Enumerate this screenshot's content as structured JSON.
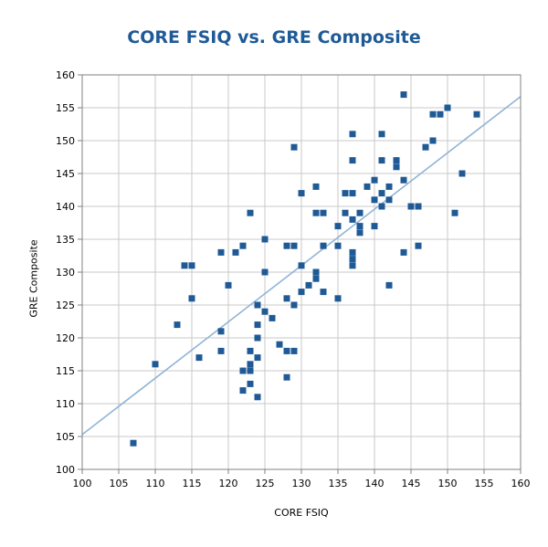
{
  "chart_data": {
    "type": "scatter",
    "title": "CORE FSIQ vs. GRE Composite",
    "xlabel": "CORE FSIQ",
    "ylabel": "GRE Composite",
    "xlim": [
      100,
      160
    ],
    "ylim": [
      100,
      160
    ],
    "x_ticks": [
      100,
      105,
      110,
      115,
      120,
      125,
      130,
      135,
      140,
      145,
      150,
      155,
      160
    ],
    "y_ticks": [
      100,
      105,
      110,
      115,
      120,
      125,
      130,
      135,
      140,
      145,
      150,
      155,
      160
    ],
    "grid": true,
    "legend": "none",
    "trendline": {
      "type": "linear",
      "points": [
        [
          100,
          105.3
        ],
        [
          160,
          156.7
        ]
      ]
    },
    "series": [
      {
        "points": [
          [
            107,
            104
          ],
          [
            110,
            116
          ],
          [
            113,
            122
          ],
          [
            114,
            131
          ],
          [
            115,
            131
          ],
          [
            115,
            126
          ],
          [
            116,
            117
          ],
          [
            119,
            133
          ],
          [
            119,
            121
          ],
          [
            119,
            118
          ],
          [
            120,
            128
          ],
          [
            121,
            133
          ],
          [
            122,
            134
          ],
          [
            122,
            115
          ],
          [
            122,
            112
          ],
          [
            123,
            139
          ],
          [
            123,
            118
          ],
          [
            123,
            116
          ],
          [
            123,
            115
          ],
          [
            123,
            113
          ],
          [
            124,
            125
          ],
          [
            124,
            122
          ],
          [
            124,
            120
          ],
          [
            124,
            117
          ],
          [
            124,
            111
          ],
          [
            125,
            135
          ],
          [
            125,
            130
          ],
          [
            125,
            124
          ],
          [
            126,
            123
          ],
          [
            127,
            119
          ],
          [
            128,
            134
          ],
          [
            128,
            126
          ],
          [
            128,
            118
          ],
          [
            128,
            114
          ],
          [
            129,
            149
          ],
          [
            129,
            134
          ],
          [
            129,
            125
          ],
          [
            129,
            118
          ],
          [
            130,
            142
          ],
          [
            130,
            131
          ],
          [
            130,
            127
          ],
          [
            131,
            128
          ],
          [
            132,
            143
          ],
          [
            132,
            139
          ],
          [
            132,
            130
          ],
          [
            132,
            129
          ],
          [
            133,
            139
          ],
          [
            133,
            134
          ],
          [
            133,
            127
          ],
          [
            135,
            137
          ],
          [
            135,
            134
          ],
          [
            135,
            126
          ],
          [
            136,
            142
          ],
          [
            136,
            139
          ],
          [
            137,
            151
          ],
          [
            137,
            147
          ],
          [
            137,
            142
          ],
          [
            137,
            138
          ],
          [
            137,
            133
          ],
          [
            137,
            132
          ],
          [
            137,
            131
          ],
          [
            138,
            139
          ],
          [
            138,
            137
          ],
          [
            138,
            136
          ],
          [
            139,
            143
          ],
          [
            140,
            144
          ],
          [
            140,
            141
          ],
          [
            140,
            137
          ],
          [
            141,
            151
          ],
          [
            141,
            147
          ],
          [
            141,
            142
          ],
          [
            141,
            140
          ],
          [
            142,
            143
          ],
          [
            142,
            141
          ],
          [
            142,
            128
          ],
          [
            143,
            147
          ],
          [
            143,
            146
          ],
          [
            144,
            157
          ],
          [
            144,
            144
          ],
          [
            144,
            133
          ],
          [
            145,
            140
          ],
          [
            146,
            140
          ],
          [
            146,
            134
          ],
          [
            147,
            149
          ],
          [
            148,
            154
          ],
          [
            148,
            150
          ],
          [
            149,
            154
          ],
          [
            150,
            155
          ],
          [
            151,
            139
          ],
          [
            152,
            145
          ],
          [
            154,
            154
          ]
        ]
      }
    ],
    "colors": {
      "title": "#1f5a96",
      "marker": "#1f5a96",
      "trendline": "#8fb4d6",
      "grid": "#c8c8c8",
      "axis": "#808080"
    }
  }
}
